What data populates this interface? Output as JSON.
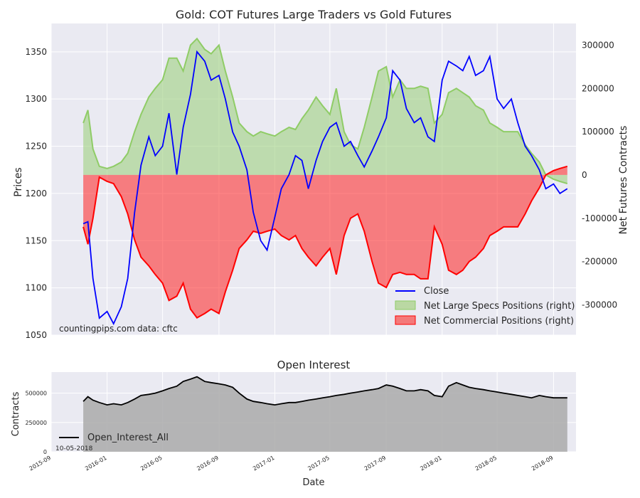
{
  "chart_data": [
    {
      "type": "line",
      "title": "Gold: COT Futures Large Traders vs Gold Futures",
      "ylabel": "Prices",
      "y2label": "Net Futures Contracts",
      "ylim": [
        1050,
        1380
      ],
      "y2lim": [
        -370000,
        350000
      ],
      "yticks": [
        1050,
        1100,
        1150,
        1200,
        1250,
        1300,
        1350
      ],
      "y2ticks": [
        -300000,
        -200000,
        -100000,
        0,
        100000,
        200000,
        300000
      ],
      "y2ticklabels": [
        "-300000",
        "-200000",
        "-100000",
        "0",
        "100000",
        "200000",
        "300000"
      ],
      "grid": true,
      "legend_position": "lower-right",
      "x_dates": [
        "2015-11-10",
        "2015-11-20",
        "2015-12-01",
        "2015-12-15",
        "2016-01-01",
        "2016-01-15",
        "2016-02-01",
        "2016-02-15",
        "2016-03-01",
        "2016-03-15",
        "2016-04-01",
        "2016-04-15",
        "2016-05-01",
        "2016-05-15",
        "2016-06-01",
        "2016-06-15",
        "2016-07-01",
        "2016-07-15",
        "2016-08-01",
        "2016-08-15",
        "2016-09-01",
        "2016-09-15",
        "2016-10-01",
        "2016-10-15",
        "2016-11-01",
        "2016-11-15",
        "2016-12-01",
        "2016-12-15",
        "2017-01-01",
        "2017-01-15",
        "2017-02-01",
        "2017-02-15",
        "2017-03-01",
        "2017-03-15",
        "2017-04-01",
        "2017-04-15",
        "2017-05-01",
        "2017-05-15",
        "2017-06-01",
        "2017-06-15",
        "2017-07-01",
        "2017-07-15",
        "2017-08-01",
        "2017-08-15",
        "2017-09-01",
        "2017-09-15",
        "2017-10-01",
        "2017-10-15",
        "2017-11-01",
        "2017-11-15",
        "2017-12-01",
        "2017-12-15",
        "2018-01-01",
        "2018-01-15",
        "2018-02-01",
        "2018-02-15",
        "2018-03-01",
        "2018-03-15",
        "2018-04-01",
        "2018-04-15",
        "2018-05-01",
        "2018-05-15",
        "2018-06-01",
        "2018-06-15",
        "2018-07-01",
        "2018-07-15",
        "2018-08-01",
        "2018-08-15",
        "2018-09-01",
        "2018-09-15",
        "2018-10-01"
      ],
      "series": [
        {
          "name": "Close",
          "color": "#0000ff",
          "axis": "left",
          "values": [
            1168,
            1170,
            1110,
            1068,
            1075,
            1062,
            1080,
            1110,
            1180,
            1230,
            1260,
            1240,
            1250,
            1285,
            1220,
            1270,
            1305,
            1350,
            1340,
            1320,
            1325,
            1300,
            1265,
            1250,
            1225,
            1180,
            1150,
            1140,
            1175,
            1205,
            1220,
            1240,
            1235,
            1205,
            1235,
            1255,
            1270,
            1275,
            1250,
            1255,
            1240,
            1228,
            1245,
            1260,
            1280,
            1330,
            1320,
            1290,
            1275,
            1280,
            1260,
            1255,
            1320,
            1340,
            1335,
            1330,
            1345,
            1325,
            1330,
            1345,
            1300,
            1290,
            1300,
            1275,
            1250,
            1240,
            1225,
            1205,
            1210,
            1200,
            1205
          ]
        },
        {
          "name": "Net Large Specs Positions (right)",
          "color": "#8fcc66",
          "axis": "right",
          "values": [
            120000,
            150000,
            60000,
            20000,
            15000,
            20000,
            30000,
            50000,
            100000,
            140000,
            180000,
            200000,
            220000,
            270000,
            270000,
            240000,
            300000,
            315000,
            290000,
            280000,
            300000,
            240000,
            180000,
            120000,
            100000,
            90000,
            100000,
            95000,
            90000,
            100000,
            110000,
            105000,
            130000,
            150000,
            180000,
            160000,
            140000,
            200000,
            100000,
            70000,
            60000,
            110000,
            180000,
            240000,
            250000,
            180000,
            220000,
            200000,
            200000,
            205000,
            200000,
            120000,
            140000,
            190000,
            200000,
            190000,
            180000,
            160000,
            150000,
            120000,
            110000,
            100000,
            100000,
            100000,
            70000,
            50000,
            30000,
            0,
            -10000,
            -15000,
            -20000
          ]
        },
        {
          "name": "Net Commercial Positions (right)",
          "color": "#ff0000",
          "axis": "right",
          "values": [
            -120000,
            -160000,
            -100000,
            -5000,
            -15000,
            -20000,
            -50000,
            -90000,
            -150000,
            -190000,
            -210000,
            -230000,
            -250000,
            -290000,
            -280000,
            -250000,
            -310000,
            -330000,
            -320000,
            -310000,
            -320000,
            -270000,
            -220000,
            -170000,
            -150000,
            -130000,
            -135000,
            -130000,
            -125000,
            -140000,
            -150000,
            -140000,
            -170000,
            -190000,
            -210000,
            -190000,
            -170000,
            -230000,
            -140000,
            -100000,
            -90000,
            -130000,
            -200000,
            -250000,
            -260000,
            -230000,
            -225000,
            -230000,
            -230000,
            -240000,
            -240000,
            -120000,
            -160000,
            -220000,
            -230000,
            -220000,
            -200000,
            -190000,
            -170000,
            -140000,
            -130000,
            -120000,
            -120000,
            -120000,
            -90000,
            -60000,
            -30000,
            0,
            10000,
            15000,
            20000
          ]
        }
      ],
      "annotations": [
        "countingpips.com",
        "data: cftc"
      ]
    },
    {
      "type": "area",
      "title": "Open Interest",
      "xlabel": "Date",
      "ylabel": "Contracts",
      "ylim": [
        0,
        680000
      ],
      "yticks": [
        0,
        250000,
        500000
      ],
      "yticklabels": [
        "0",
        "250000",
        "500000"
      ],
      "xlim": [
        "2015-09-01",
        "2018-10-20"
      ],
      "xticks": [
        "2015-09-01",
        "2016-01-01",
        "2016-05-01",
        "2016-09-01",
        "2017-01-01",
        "2017-05-01",
        "2017-09-01",
        "2018-01-01",
        "2018-05-01",
        "2018-09-01"
      ],
      "xticklabels": [
        "2015-09",
        "2016-01",
        "2016-05",
        "2016-09",
        "2017-01",
        "2017-05",
        "2017-09",
        "2018-01",
        "2018-05",
        "2018-09"
      ],
      "legend_position": "lower-left",
      "series": [
        {
          "name": "Open_Interest_All",
          "color": "#000000",
          "fill": "#aaaaaa",
          "values": [
            430000,
            470000,
            440000,
            420000,
            400000,
            410000,
            400000,
            420000,
            450000,
            480000,
            490000,
            500000,
            520000,
            540000,
            560000,
            600000,
            620000,
            640000,
            600000,
            590000,
            580000,
            570000,
            550000,
            500000,
            450000,
            430000,
            420000,
            410000,
            400000,
            410000,
            420000,
            420000,
            430000,
            440000,
            450000,
            460000,
            470000,
            480000,
            490000,
            500000,
            510000,
            520000,
            530000,
            540000,
            570000,
            560000,
            540000,
            520000,
            520000,
            530000,
            520000,
            480000,
            470000,
            560000,
            590000,
            570000,
            550000,
            540000,
            530000,
            520000,
            510000,
            500000,
            490000,
            480000,
            470000,
            460000,
            480000,
            470000,
            460000,
            460000,
            460000
          ]
        }
      ],
      "footnote": "10-05-2018"
    }
  ]
}
